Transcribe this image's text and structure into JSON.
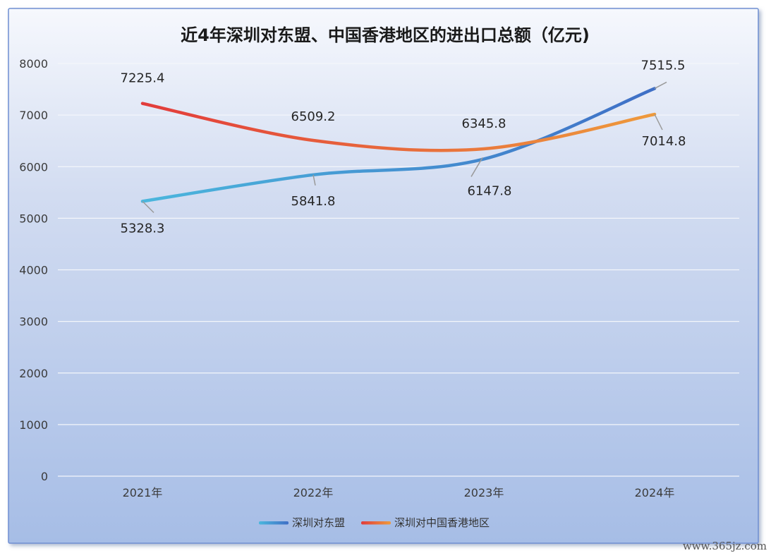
{
  "watermark": "www.365jz.com",
  "colors": {
    "asean_start": "#4bb7dd",
    "asean_end": "#3f6fc6",
    "hk_start": "#e23b3b",
    "hk_end": "#ee9a3c",
    "gridline": "#f4f6fb",
    "leader": "#9a9a9a"
  },
  "chart_data": {
    "type": "line",
    "title": "近4年深圳对东盟、中国香港地区的进出口总额（亿元)",
    "title_parts": {
      "prefix": "近",
      "number": "4",
      "suffix": "年深圳对东盟、中国香港地区的进出口总额（亿元)"
    },
    "categories": [
      "2021年",
      "2022年",
      "2023年",
      "2024年"
    ],
    "ylim": [
      0,
      8000
    ],
    "yticks": [
      "0",
      "1000",
      "2000",
      "3000",
      "4000",
      "5000",
      "6000",
      "7000",
      "8000"
    ],
    "grid": true,
    "smooth": true,
    "legend_position": "bottom",
    "series": [
      {
        "name": "深圳对东盟",
        "values": [
          5328.3,
          5841.8,
          6147.8,
          7515.5
        ],
        "labels": [
          "5328.3",
          "5841.8",
          "6147.8",
          "7515.5"
        ],
        "color_start": "#4bb7dd",
        "color_end": "#3f6fc6"
      },
      {
        "name": "深圳对中国香港地区",
        "values": [
          7225.4,
          6509.2,
          6345.8,
          7014.8
        ],
        "labels": [
          "7225.4",
          "6509.2",
          "6345.8",
          "7014.8"
        ],
        "color_start": "#e23b3b",
        "color_end": "#ee9a3c"
      }
    ]
  }
}
